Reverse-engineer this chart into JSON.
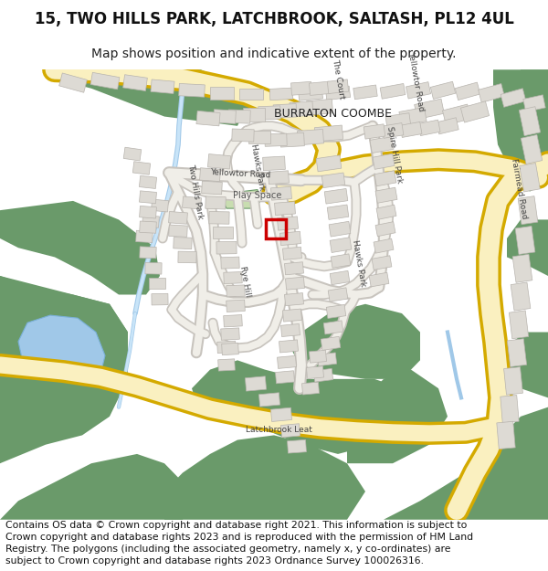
{
  "title_line1": "15, TWO HILLS PARK, LATCHBROOK, SALTASH, PL12 4UL",
  "title_line2": "Map shows position and indicative extent of the property.",
  "footer_text": "Contains OS data © Crown copyright and database right 2021. This information is subject to Crown copyright and database rights 2023 and is reproduced with the permission of HM Land Registry. The polygons (including the associated geometry, namely x, y co-ordinates) are subject to Crown copyright and database rights 2023 Ordnance Survey 100026316.",
  "bg_color": "#ffffff",
  "map_bg": "#f7f5f2",
  "green_dark": "#6a9a6a",
  "green_light": "#c8ddb0",
  "road_yellow_fill": "#faf0c0",
  "road_yellow_edge": "#d4aa00",
  "road_white_fill": "#f0eee8",
  "road_white_edge": "#c8c4be",
  "building_fill": "#dddad4",
  "building_outline": "#b8b4ae",
  "water_blue": "#a0c8e8",
  "water_dark": "#7ab0d8",
  "label_color": "#444444",
  "red_box_color": "#cc0000",
  "title_fontsize": 12,
  "subtitle_fontsize": 10,
  "footer_fontsize": 7.8
}
